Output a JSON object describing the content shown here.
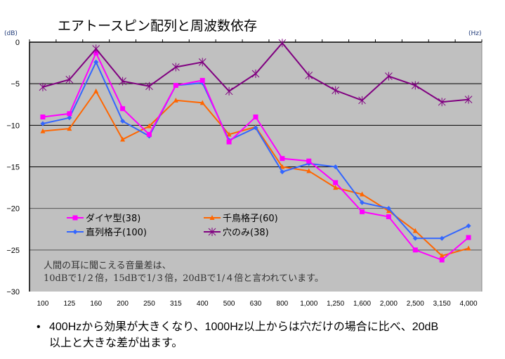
{
  "chart_data": {
    "type": "line",
    "title": "エアトースピン配列と周波数依存",
    "ylabel": "(dB)",
    "xlabel": "(Hz)",
    "ylim": [
      -30,
      0
    ],
    "yticks": [
      0,
      -5,
      -10,
      -15,
      -20,
      -25,
      -30
    ],
    "grid": true,
    "legend_position": "bottom-left",
    "categories": [
      "100",
      "125",
      "160",
      "200",
      "250",
      "315",
      "400",
      "500",
      "630",
      "800",
      "1,000",
      "1,250",
      "1,600",
      "2,000",
      "2,500",
      "3,150",
      "4,000"
    ],
    "series": [
      {
        "name": "ダイヤ型(38)",
        "color": "#ff00ff",
        "marker": "square",
        "values": [
          -9.0,
          -8.6,
          -1.3,
          -8.0,
          -11.1,
          -5.2,
          -4.6,
          -12.0,
          -9.0,
          -14.0,
          -14.3,
          -16.9,
          -20.4,
          -21.0,
          -25.0,
          -26.2,
          -23.5
        ]
      },
      {
        "name": "千鳥格子(60)",
        "color": "#ff6600",
        "marker": "triangle",
        "values": [
          -10.7,
          -10.4,
          -5.9,
          -11.7,
          -10.1,
          -7.0,
          -7.3,
          -11.1,
          -10.2,
          -15.0,
          -15.5,
          -17.5,
          -18.3,
          -20.3,
          -22.7,
          -25.7,
          -24.8
        ]
      },
      {
        "name": "直列格子(100)",
        "color": "#3366ff",
        "marker": "diamond",
        "values": [
          -9.8,
          -9.1,
          -2.4,
          -9.5,
          -11.3,
          -5.2,
          -4.9,
          -11.8,
          -10.3,
          -15.6,
          -14.6,
          -15.0,
          -19.3,
          -20.0,
          -23.6,
          -23.6,
          -22.1
        ]
      },
      {
        "name": "穴のみ(38)",
        "color": "#800080",
        "marker": "star",
        "values": [
          -5.4,
          -4.5,
          -0.8,
          -4.7,
          -5.3,
          -3.0,
          -2.4,
          -5.9,
          -3.8,
          -0.1,
          -4.0,
          -5.8,
          -7.0,
          -4.1,
          -5.2,
          -7.2,
          -6.9
        ]
      }
    ],
    "annotation": {
      "line1": "人間の耳に聞こえる音量差は、",
      "line2": "10dBで1/２倍，15dBで1/３倍，20dBで1/４倍と言われています。"
    }
  },
  "bullet": {
    "marker": "•",
    "text": "400Hzから効果が大きくなり、1000Hz以上からは穴だけの場合に比べ、20dB以上と大きな差が出ます。"
  },
  "colors": {
    "plot_bg": "#c0c0c0",
    "grid": "#000000"
  }
}
